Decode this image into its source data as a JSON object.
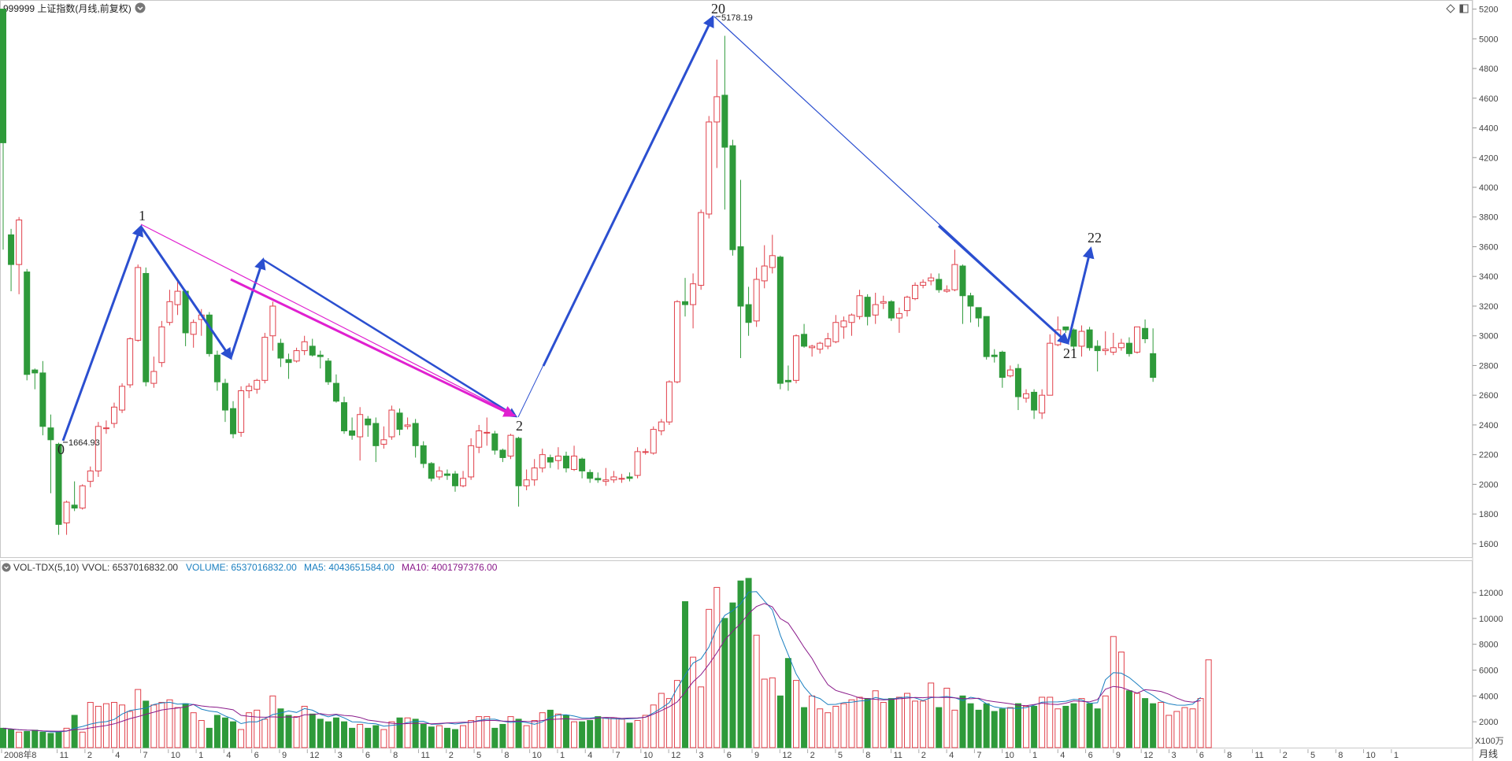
{
  "header": {
    "title": "999999 上证指数(月线,前复权)",
    "dropdown_icon": "chevron-down-icon",
    "right_icons": [
      "diamond-icon",
      "panel-icon"
    ]
  },
  "volume_header": {
    "indicator": "VOL-TDX(5,10)",
    "vvol": "VVOL: 6537016832.00",
    "volume": "VOLUME: 6537016832.00",
    "ma5": "MA5: 4043651584.00",
    "ma10": "MA10: 4001797376.00",
    "colors": {
      "indicator": "#333333",
      "volume": "#1a7fc0",
      "ma5": "#1a7fc0",
      "ma10": "#8a1a8a"
    }
  },
  "period_label": "月线",
  "volume_unit": "X100万",
  "colors": {
    "up": "#e0404a",
    "down": "#2e9a3a",
    "wave": "#2b4fd0",
    "channel": "#e020d0",
    "ma5": "#1a7fc0",
    "ma10": "#8a1a8a"
  },
  "chart_data": {
    "type": "candlestick",
    "price_axis": {
      "ticks": [
        1600,
        1800,
        2000,
        2200,
        2400,
        2600,
        2800,
        3000,
        3200,
        3400,
        3600,
        3800,
        4000,
        4200,
        4400,
        4600,
        4800,
        5000,
        5200
      ],
      "range": [
        1520,
        5240
      ]
    },
    "volume_axis": {
      "ticks": [
        2000,
        4000,
        6000,
        8000,
        10000,
        12000
      ],
      "range": [
        0,
        13400
      ],
      "unit": "X100万"
    },
    "x_labels": [
      "2008年",
      "8",
      "11",
      "2",
      "4",
      "7",
      "10",
      "1",
      "4",
      "6",
      "9",
      "12",
      "3",
      "6",
      "8",
      "11",
      "2",
      "5",
      "8",
      "10",
      "1",
      "4",
      "7",
      "10",
      "12",
      "3",
      "6",
      "9",
      "12",
      "2",
      "5",
      "8",
      "11",
      "2",
      "4",
      "7",
      "10",
      "1",
      "4",
      "6",
      "9",
      "12",
      "3",
      "6",
      "8",
      "11",
      "2",
      "5",
      "8",
      "10",
      "1"
    ],
    "candles": [
      [
        5200,
        4300,
        4680,
        3580
      ],
      [
        3680,
        3480,
        3720,
        3300
      ],
      [
        3480,
        3780,
        3800,
        3280
      ],
      [
        3430,
        2740,
        3450,
        2700
      ],
      [
        2770,
        2750,
        2780,
        2640
      ],
      [
        2750,
        2390,
        2830,
        2330
      ],
      [
        2380,
        2300,
        2470,
        1940
      ],
      [
        2270,
        1730,
        2280,
        1660
      ],
      [
        1740,
        1880,
        1890,
        1660
      ],
      [
        1860,
        1840,
        2020,
        1820
      ],
      [
        1840,
        1990,
        2000,
        1830
      ],
      [
        2020,
        2090,
        2120,
        1980
      ],
      [
        2090,
        2390,
        2420,
        2050
      ],
      [
        2380,
        2380,
        2430,
        2340
      ],
      [
        2410,
        2520,
        2550,
        2380
      ],
      [
        2500,
        2660,
        2680,
        2480
      ],
      [
        2670,
        2980,
        2990,
        2650
      ],
      [
        2970,
        3460,
        3480,
        2960
      ],
      [
        3420,
        2690,
        3460,
        2660
      ],
      [
        2680,
        2760,
        2860,
        2650
      ],
      [
        2820,
        3060,
        3100,
        2790
      ],
      [
        3090,
        3230,
        3310,
        3070
      ],
      [
        3210,
        3300,
        3380,
        3140
      ],
      [
        3300,
        3020,
        3310,
        2930
      ],
      [
        3010,
        3090,
        3110,
        2920
      ],
      [
        3110,
        3140,
        3180,
        3000
      ],
      [
        3140,
        2880,
        3160,
        2860
      ],
      [
        2870,
        2690,
        2900,
        2630
      ],
      [
        2680,
        2500,
        2710,
        2420
      ],
      [
        2510,
        2340,
        2560,
        2310
      ],
      [
        2350,
        2630,
        2660,
        2320
      ],
      [
        2630,
        2660,
        2680,
        2580
      ],
      [
        2640,
        2700,
        2710,
        2610
      ],
      [
        2700,
        2990,
        3020,
        2680
      ],
      [
        3000,
        3200,
        3230,
        2900
      ],
      [
        2950,
        2850,
        2980,
        2790
      ],
      [
        2840,
        2820,
        2880,
        2710
      ],
      [
        2830,
        2900,
        2920,
        2820
      ],
      [
        2900,
        2960,
        3000,
        2870
      ],
      [
        2930,
        2870,
        2980,
        2860
      ],
      [
        2870,
        2860,
        2900,
        2780
      ],
      [
        2830,
        2690,
        2850,
        2670
      ],
      [
        2680,
        2560,
        2740,
        2550
      ],
      [
        2550,
        2360,
        2590,
        2340
      ],
      [
        2360,
        2330,
        2450,
        2300
      ],
      [
        2320,
        2470,
        2520,
        2160
      ],
      [
        2440,
        2400,
        2460,
        2320
      ],
      [
        2410,
        2260,
        2450,
        2150
      ],
      [
        2270,
        2300,
        2390,
        2240
      ],
      [
        2320,
        2500,
        2530,
        2300
      ],
      [
        2480,
        2370,
        2510,
        2330
      ],
      [
        2390,
        2400,
        2450,
        2370
      ],
      [
        2410,
        2260,
        2440,
        2180
      ],
      [
        2260,
        2140,
        2290,
        2110
      ],
      [
        2140,
        2040,
        2150,
        2020
      ],
      [
        2050,
        2090,
        2120,
        2030
      ],
      [
        2070,
        2060,
        2100,
        2030
      ],
      [
        2070,
        1990,
        2090,
        1950
      ],
      [
        1990,
        2040,
        2090,
        1980
      ],
      [
        2050,
        2260,
        2310,
        2030
      ],
      [
        2250,
        2360,
        2400,
        2210
      ],
      [
        2350,
        2350,
        2450,
        2260
      ],
      [
        2340,
        2230,
        2360,
        2200
      ],
      [
        2230,
        2180,
        2240,
        2150
      ],
      [
        2190,
        2330,
        2340,
        2170
      ],
      [
        2310,
        1990,
        2320,
        1850
      ],
      [
        1990,
        2030,
        2100,
        1960
      ],
      [
        2030,
        2110,
        2170,
        1990
      ],
      [
        2110,
        2200,
        2240,
        2080
      ],
      [
        2180,
        2150,
        2200,
        2110
      ],
      [
        2160,
        2190,
        2250,
        2100
      ],
      [
        2190,
        2110,
        2220,
        2080
      ],
      [
        2100,
        2190,
        2260,
        2090
      ],
      [
        2170,
        2090,
        2180,
        2040
      ],
      [
        2080,
        2040,
        2100,
        2010
      ],
      [
        2040,
        2030,
        2080,
        2010
      ],
      [
        2020,
        2030,
        2110,
        1990
      ],
      [
        2030,
        2050,
        2090,
        2010
      ],
      [
        2040,
        2040,
        2070,
        2010
      ],
      [
        2050,
        2040,
        2080,
        2020
      ],
      [
        2060,
        2220,
        2250,
        2040
      ],
      [
        2220,
        2220,
        2240,
        2200
      ],
      [
        2210,
        2370,
        2390,
        2200
      ],
      [
        2360,
        2420,
        2440,
        2330
      ],
      [
        2420,
        2690,
        2700,
        2400
      ],
      [
        2690,
        3230,
        3240,
        2680
      ],
      [
        3230,
        3210,
        3390,
        3130
      ],
      [
        3210,
        3350,
        3420,
        3050
      ],
      [
        3340,
        3830,
        3850,
        3310
      ],
      [
        3820,
        4440,
        4480,
        3790
      ],
      [
        4440,
        4610,
        4860,
        4130
      ],
      [
        4620,
        4270,
        5020,
        3850
      ],
      [
        4280,
        3580,
        4320,
        3540
      ],
      [
        3600,
        3200,
        4050,
        2850
      ],
      [
        3210,
        3090,
        3330,
        3000
      ],
      [
        3100,
        3380,
        3460,
        3060
      ],
      [
        3370,
        3470,
        3610,
        3320
      ],
      [
        3460,
        3540,
        3680,
        3420
      ],
      [
        3530,
        2680,
        3540,
        2640
      ],
      [
        2700,
        2690,
        2800,
        2630
      ],
      [
        2700,
        3000,
        3010,
        2680
      ],
      [
        3010,
        2930,
        3080,
        2920
      ],
      [
        2920,
        2930,
        2940,
        2860
      ],
      [
        2910,
        2950,
        2960,
        2880
      ],
      [
        2930,
        2980,
        3020,
        2910
      ],
      [
        2960,
        3090,
        3140,
        2950
      ],
      [
        3060,
        3100,
        3130,
        2980
      ],
      [
        3090,
        3140,
        3150,
        3000
      ],
      [
        3130,
        3270,
        3310,
        3110
      ],
      [
        3260,
        3130,
        3280,
        3070
      ],
      [
        3140,
        3210,
        3290,
        3080
      ],
      [
        3220,
        3230,
        3270,
        3180
      ],
      [
        3230,
        3120,
        3240,
        3100
      ],
      [
        3120,
        3150,
        3190,
        3020
      ],
      [
        3170,
        3260,
        3270,
        3130
      ],
      [
        3250,
        3340,
        3360,
        3240
      ],
      [
        3340,
        3360,
        3380,
        3320
      ],
      [
        3370,
        3390,
        3420,
        3340
      ],
      [
        3380,
        3310,
        3420,
        3290
      ],
      [
        3300,
        3310,
        3340,
        3290
      ],
      [
        3310,
        3480,
        3580,
        3300
      ],
      [
        3470,
        3270,
        3480,
        3080
      ],
      [
        3270,
        3200,
        3290,
        3090
      ],
      [
        3190,
        3120,
        3190,
        3060
      ],
      [
        3130,
        2860,
        3130,
        2840
      ],
      [
        2870,
        2860,
        2910,
        2820
      ],
      [
        2890,
        2720,
        2900,
        2650
      ],
      [
        2730,
        2770,
        2800,
        2720
      ],
      [
        2780,
        2590,
        2810,
        2500
      ],
      [
        2580,
        2610,
        2640,
        2550
      ],
      [
        2620,
        2500,
        2640,
        2440
      ],
      [
        2480,
        2600,
        2640,
        2440
      ],
      [
        2600,
        2950,
        3010,
        2600
      ],
      [
        2940,
        3040,
        3130,
        2930
      ],
      [
        3060,
        3040,
        3060,
        3020
      ],
      [
        3040,
        2930,
        3050,
        2880
      ],
      [
        2930,
        3030,
        3070,
        2860
      ],
      [
        3040,
        2920,
        3060,
        2900
      ],
      [
        2930,
        2900,
        2970,
        2760
      ],
      [
        2900,
        2910,
        3030,
        2870
      ],
      [
        2890,
        2920,
        3020,
        2870
      ],
      [
        2920,
        2950,
        2980,
        2900
      ],
      [
        2950,
        2880,
        2990,
        2860
      ],
      [
        2890,
        3060,
        3060,
        2880
      ],
      [
        3050,
        2980,
        3110,
        2950
      ],
      [
        2880,
        2720,
        3050,
        2690
      ]
    ],
    "volumes": [
      1500,
      1400,
      1200,
      1250,
      1350,
      1200,
      1100,
      1200,
      1500,
      2500,
      1200,
      3500,
      3200,
      3400,
      3500,
      3300,
      2800,
      4500,
      3600,
      3300,
      3500,
      3700,
      3100,
      3400,
      2700,
      2100,
      1500,
      2500,
      2300,
      2000,
      1400,
      2700,
      2900,
      2200,
      4000,
      3000,
      2500,
      2400,
      3200,
      2600,
      2200,
      2000,
      2300,
      2000,
      1500,
      1800,
      1500,
      1700,
      1400,
      2000,
      2300,
      2300,
      2200,
      1800,
      1600,
      1700,
      1500,
      1400,
      1700,
      2100,
      2400,
      2400,
      1500,
      1800,
      2400,
      2200,
      1700,
      2100,
      2700,
      2900,
      2600,
      2500,
      2000,
      2000,
      2100,
      2400,
      2300,
      2300,
      2200,
      1900,
      2100,
      2500,
      3300,
      4200,
      3800,
      5200,
      11300,
      7000,
      4700,
      10700,
      12400,
      10000,
      11200,
      12900,
      13100,
      8700,
      5300,
      5400,
      4000,
      6900,
      5200,
      3100,
      4000,
      3000,
      2700,
      3200,
      3400,
      3700,
      3900,
      3800,
      4400,
      3500,
      3800,
      3900,
      4200,
      3600,
      3600,
      5000,
      3100,
      4600,
      2900,
      4000,
      3400,
      2900,
      3400,
      2800,
      3000,
      3100,
      3400,
      3200,
      3200,
      3900,
      3900,
      3000,
      3200,
      3400,
      3800,
      3400,
      3000,
      4000,
      8600,
      7400,
      4400,
      4200,
      3800,
      3400,
      3500,
      2500,
      2800,
      3100,
      3000,
      3800,
      6800
    ],
    "ma5": [
      1500,
      1450,
      1380,
      1350,
      1340,
      1280,
      1220,
      1220,
      1270,
      1500,
      1640,
      1820,
      1950,
      2010,
      2180,
      2600,
      2870,
      2970,
      3050,
      3340,
      3460,
      3510,
      3370,
      3400,
      3340,
      2980,
      2830,
      2760,
      2450,
      2220,
      1860,
      2000,
      2000,
      2240,
      2560,
      2680,
      2840,
      2720,
      3020,
      2900,
      2580,
      2380,
      2540,
      2300,
      2000,
      1980,
      1880,
      1840,
      1660,
      1720,
      1780,
      1940,
      2040,
      2040,
      1800,
      1830,
      1900,
      1830,
      1900,
      1960,
      2100,
      2200,
      2200,
      2040,
      1950,
      2010,
      1940,
      1810,
      2000,
      2360,
      2520,
      2540,
      2440,
      2290,
      2300,
      2330,
      2260,
      2230,
      2210,
      2230,
      2270,
      2360,
      2680,
      3060,
      3480,
      4610,
      5610,
      6550,
      6870,
      7780,
      9270,
      10240,
      10600,
      11130,
      12040,
      12070,
      11350,
      10650,
      8700,
      7200,
      5700,
      4700,
      4000,
      3800,
      3330,
      3350,
      3490,
      3520,
      3610,
      3650,
      3880,
      3750,
      3750,
      3850,
      3920,
      3850,
      3640,
      3870,
      3900,
      3960,
      3860,
      3640,
      3900,
      3780,
      3400,
      3150,
      3060,
      3050,
      3040,
      3100,
      3280,
      3520,
      3530,
      3540,
      3590,
      3740,
      3690,
      3430,
      3480,
      5250,
      5800,
      5760,
      5430,
      4920,
      4380,
      4040,
      3600,
      3390,
      3290,
      3280,
      3360,
      3880
    ],
    "ma10": [
      1500,
      1450,
      1380,
      1350,
      1340,
      1300,
      1280,
      1270,
      1290,
      1400,
      1420,
      1530,
      1620,
      1710,
      1840,
      2040,
      2250,
      2400,
      2580,
      2740,
      2920,
      3000,
      3060,
      3150,
      3340,
      3230,
      3160,
      3120,
      3030,
      2930,
      2500,
      2420,
      2370,
      2350,
      2380,
      2350,
      2380,
      2340,
      2540,
      2560,
      2630,
      2530,
      2580,
      2490,
      2450,
      2330,
      2130,
      2050,
      1970,
      1880,
      1840,
      1860,
      1880,
      1880,
      1840,
      1870,
      1910,
      1930,
      1960,
      1970,
      2050,
      2100,
      2100,
      2050,
      2040,
      2050,
      2020,
      2010,
      2100,
      2180,
      2210,
      2240,
      2190,
      2190,
      2220,
      2300,
      2340,
      2330,
      2260,
      2290,
      2300,
      2350,
      2580,
      2870,
      3160,
      3540,
      4280,
      5090,
      5650,
      6450,
      7340,
      8340,
      9000,
      9600,
      10380,
      10920,
      11160,
      10890,
      9990,
      9630,
      8730,
      7760,
      6910,
      5810,
      4870,
      4430,
      4240,
      4060,
      3840,
      3800,
      3740,
      3690,
      3730,
      3780,
      3830,
      3880,
      3860,
      3910,
      3880,
      3890,
      3850,
      3800,
      3780,
      3820,
      3650,
      3560,
      3480,
      3390,
      3290,
      3240,
      3340,
      3440,
      3370,
      3340,
      3440,
      3620,
      3580,
      3540,
      3730,
      4520,
      4740,
      4660,
      4440,
      4220,
      4480,
      4430,
      4350,
      4130,
      3830,
      3600,
      3520,
      3640
    ]
  },
  "annotations": {
    "wave_labels": [
      "0",
      "1",
      "2",
      "20",
      "21",
      "22"
    ],
    "low_price": "1664.93",
    "high_price": "5178.19"
  }
}
